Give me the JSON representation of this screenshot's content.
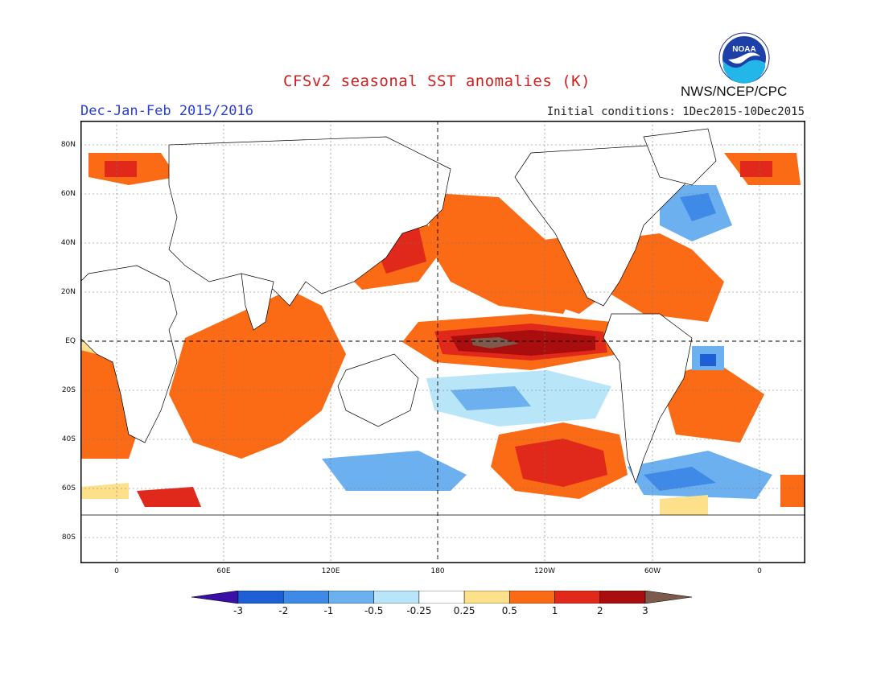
{
  "header": {
    "title": "CFSv2 seasonal SST anomalies (K)",
    "season": "Dec-Jan-Feb 2015/2016",
    "initial_conditions": "Initial conditions: 1Dec2015-10Dec2015",
    "agency": "NWS/NCEP/CPC",
    "logo_text": "NOAA"
  },
  "map": {
    "lat_labels": [
      "80N",
      "60N",
      "40N",
      "20N",
      "EQ",
      "20S",
      "40S",
      "60S",
      "80S"
    ],
    "lon_labels": [
      "0",
      "60E",
      "120E",
      "180",
      "120W",
      "60W",
      "0"
    ]
  },
  "colorbar": {
    "labels": [
      "-3",
      "-2",
      "-1",
      "-0.5",
      "-0.25",
      "0.25",
      "0.5",
      "1",
      "2",
      "3"
    ],
    "colors": [
      "#3a0fa8",
      "#1f5fd6",
      "#3f8ae6",
      "#6cb0f0",
      "#b8e6f8",
      "#ffffff",
      "#fde08a",
      "#fb6a15",
      "#e0281b",
      "#a90d0d",
      "#7c5a4c"
    ]
  }
}
